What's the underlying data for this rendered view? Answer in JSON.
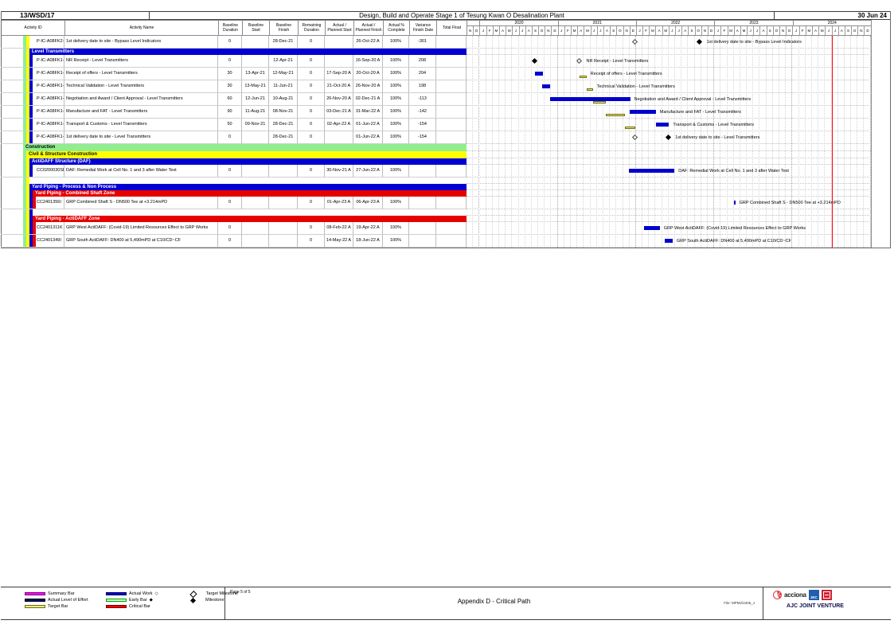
{
  "header": {
    "contract": "13/WSD/17",
    "title": "Design, Build and Operate Stage 1 of Tesung Kwan O Desalination Plant",
    "date": "30 Jun 24"
  },
  "colors": {
    "bands": {
      "green": "#90EE90",
      "yellow": "#FFFF00",
      "blue": "#0000D2",
      "red": "#E60000"
    },
    "actual_work": "#0000CD",
    "target_fill": "#EBE88F",
    "target_border": "#6E6E00",
    "summary": "#FF00FF",
    "actual_loe": "#000080",
    "early_fill": "#CCFFCC",
    "early_border": "#009900",
    "critical": "#FF0000",
    "milestone": "#000000",
    "data_date_line": "#FF0000"
  },
  "timeline": {
    "lead_label": "",
    "lead_months": [
      "N",
      "D"
    ],
    "years": [
      {
        "label": "2020",
        "months": [
          "J",
          "F",
          "M",
          "A",
          "M",
          "J",
          "J",
          "A",
          "S",
          "O",
          "N",
          "D"
        ]
      },
      {
        "label": "2021",
        "months": [
          "J",
          "F",
          "M",
          "A",
          "M",
          "J",
          "J",
          "A",
          "S",
          "O",
          "N",
          "D"
        ]
      },
      {
        "label": "2022",
        "months": [
          "J",
          "F",
          "M",
          "A",
          "M",
          "J",
          "J",
          "A",
          "S",
          "O",
          "N",
          "D"
        ]
      },
      {
        "label": "2023",
        "months": [
          "J",
          "F",
          "M",
          "A",
          "M",
          "J",
          "J",
          "A",
          "S",
          "O",
          "N",
          "D"
        ]
      },
      {
        "label": "2024",
        "months": [
          "J",
          "F",
          "M",
          "A",
          "M",
          "J",
          "J",
          "A",
          "S",
          "O",
          "N",
          "D"
        ]
      }
    ],
    "data_date": "30 Jun 24"
  },
  "table": {
    "columns": [
      "Activity ID",
      "Activity Name",
      "Baseline Duration",
      "Baseline Start",
      "Baseline Finish",
      "Remaining Duration",
      "Actual / Planned Start",
      "Actual / Planned Finish",
      "Actual % Complete",
      "Variance Finish Date",
      "Total Float"
    ],
    "rows": [
      {
        "type": "activity",
        "id": "P-IC-A08FK2-",
        "name": "1st delivery date to site - Bypass Level Indicators",
        "bd": "0",
        "bs": "",
        "bf": "28-Dec-21",
        "rd": "0",
        "as": "",
        "af": "26-Oct-22 A",
        "pc": "100%",
        "vf": "-301",
        "tf": "",
        "strips": [
          "green",
          "yellow"
        ],
        "bar_label": "1st delivery date to site - Bypass Level Indicators",
        "bars": [
          {
            "kind": "target-milestone",
            "date": "28-Dec-21"
          },
          {
            "kind": "milestone",
            "date": "26-Oct-22"
          }
        ]
      },
      {
        "type": "band",
        "style": "blue",
        "label": "Level Transmitters",
        "strips": [
          "green",
          "yellow"
        ]
      },
      {
        "type": "activity",
        "id": "P-IC-A08FK1-",
        "name": "NR Receipt - Level Transmitters",
        "bd": "0",
        "bs": "",
        "bf": "12-Apr-21",
        "rd": "0",
        "as": "",
        "af": "16-Sep-20 A",
        "pc": "100%",
        "vf": "208",
        "tf": "",
        "strips": [
          "green",
          "yellow",
          "blue"
        ],
        "bar_label": "NR Receipt - Level Transmitters",
        "bars": [
          {
            "kind": "milestone",
            "date": "16-Sep-20"
          },
          {
            "kind": "target-milestone",
            "date": "12-Apr-21"
          }
        ]
      },
      {
        "type": "activity",
        "id": "P-IC-A08FK1-",
        "name": "Receipt of offers - Level Transmitters",
        "bd": "30",
        "bs": "13-Apr-21",
        "bf": "12-May-21",
        "rd": "0",
        "as": "17-Sep-20 A",
        "af": "20-Oct-20 A",
        "pc": "100%",
        "vf": "204",
        "tf": "",
        "strips": [
          "green",
          "yellow",
          "blue"
        ],
        "bar_label": "Receipt of offers - Level Transmitters",
        "bars": [
          {
            "kind": "actual",
            "start": "17-Sep-20",
            "end": "20-Oct-20"
          },
          {
            "kind": "target",
            "start": "13-Apr-21",
            "end": "12-May-21"
          }
        ]
      },
      {
        "type": "activity",
        "id": "P-IC-A08FK1-",
        "name": "Technical Validation - Level Transmitters",
        "bd": "30",
        "bs": "13-May-21",
        "bf": "11-Jun-21",
        "rd": "0",
        "as": "21-Oct-20 A",
        "af": "26-Nov-20 A",
        "pc": "100%",
        "vf": "198",
        "tf": "",
        "strips": [
          "green",
          "yellow",
          "blue"
        ],
        "bar_label": "Technical Validation - Level Transmitters",
        "bars": [
          {
            "kind": "actual",
            "start": "21-Oct-20",
            "end": "26-Nov-20"
          },
          {
            "kind": "target",
            "start": "13-May-21",
            "end": "11-Jun-21"
          }
        ]
      },
      {
        "type": "activity",
        "id": "P-IC-A08FK1-",
        "name": "Negotiation and Award / Client Approval - Level Transmitters",
        "bd": "60",
        "bs": "12-Jun-21",
        "bf": "10-Aug-21",
        "rd": "0",
        "as": "26-Nov-20 A",
        "af": "02-Dec-21 A",
        "pc": "100%",
        "vf": "-113",
        "tf": "",
        "strips": [
          "green",
          "yellow",
          "blue"
        ],
        "bar_label": "Negotiation and Award / Client Approval - Level Transmitters",
        "bars": [
          {
            "kind": "actual",
            "start": "26-Nov-20",
            "end": "02-Dec-21"
          },
          {
            "kind": "target",
            "start": "12-Jun-21",
            "end": "10-Aug-21"
          }
        ]
      },
      {
        "type": "activity",
        "id": "P-IC-A08FK1-",
        "name": "Manufacture and FAT - Level Transmitters",
        "bd": "90",
        "bs": "11-Aug-21",
        "bf": "08-Nov-21",
        "rd": "0",
        "as": "03-Dec-21 A",
        "af": "31-Mar-22 A",
        "pc": "100%",
        "vf": "-142",
        "tf": "",
        "strips": [
          "green",
          "yellow",
          "blue"
        ],
        "bar_label": "Manufacture and FAT - Level Transmitters",
        "bars": [
          {
            "kind": "target",
            "start": "11-Aug-21",
            "end": "08-Nov-21"
          },
          {
            "kind": "actual",
            "start": "03-Dec-21",
            "end": "31-Mar-22"
          }
        ]
      },
      {
        "type": "activity",
        "id": "P-IC-A08FK1-",
        "name": "Transport & Customs - Level Transmitters",
        "bd": "50",
        "bs": "09-Nov-21",
        "bf": "28-Dec-21",
        "rd": "0",
        "as": "02-Apr-22 A",
        "af": "01-Jun-22 A",
        "pc": "100%",
        "vf": "-154",
        "tf": "",
        "strips": [
          "green",
          "yellow",
          "blue"
        ],
        "bar_label": "Transport & Customs - Level Transmitters",
        "bars": [
          {
            "kind": "target",
            "start": "09-Nov-21",
            "end": "28-Dec-21"
          },
          {
            "kind": "actual",
            "start": "02-Apr-22",
            "end": "01-Jun-22"
          }
        ]
      },
      {
        "type": "activity",
        "id": "P-IC-A08FK1-",
        "name": "1st delivery date to site - Level Transmitters",
        "bd": "0",
        "bs": "",
        "bf": "28-Dec-21",
        "rd": "0",
        "as": "",
        "af": "01-Jun-22 A",
        "pc": "100%",
        "vf": "-154",
        "tf": "",
        "strips": [
          "green",
          "yellow",
          "blue"
        ],
        "bar_label": "1st delivery date to site - Level Transmitters",
        "bars": [
          {
            "kind": "target-milestone",
            "date": "28-Dec-21"
          },
          {
            "kind": "milestone",
            "date": "01-Jun-22"
          }
        ]
      },
      {
        "type": "band",
        "style": "green",
        "label": "Construction",
        "strips": []
      },
      {
        "type": "band",
        "style": "yellow",
        "label": "Civil & Structure Construction",
        "strips": [
          "green"
        ]
      },
      {
        "type": "band",
        "style": "blue",
        "label": "ActiDAFF Structure (DAF)",
        "strips": [
          "green",
          "yellow"
        ]
      },
      {
        "type": "activity",
        "id": "CC0200030SK",
        "name": "DAF: Remedial Work at Cell No. 1 and 3 after Water Test",
        "bd": "0",
        "bs": "",
        "bf": "",
        "rd": "0",
        "as": "30-Nov-21 A",
        "af": "27-Jun-22 A",
        "pc": "100%",
        "vf": "",
        "tf": "",
        "strips": [
          "green",
          "yellow",
          "blue"
        ],
        "bar_label": "DAF: Remedial Work at Cell No. 1 and 3 after Water Test",
        "bars": [
          {
            "kind": "actual",
            "start": "30-Nov-21",
            "end": "27-Jun-22"
          }
        ]
      },
      {
        "type": "spacer",
        "strips": [
          "green",
          "yellow"
        ]
      },
      {
        "type": "band",
        "style": "blue",
        "label": "Yard Piping - Process & Non Process",
        "strips": [
          "green",
          "yellow"
        ]
      },
      {
        "type": "band",
        "style": "red",
        "label": "Yard Piping - Combined Shaft Zone",
        "strips": [
          "green",
          "yellow",
          "blue"
        ]
      },
      {
        "type": "activity",
        "id": "CC2401356I",
        "name": "GRP Combined Shaft S - DN500 Tee at +3.214mPD",
        "bd": "0",
        "bs": "",
        "bf": "",
        "rd": "0",
        "as": "01-Apr-23 A",
        "af": "06-Apr-23 A",
        "pc": "100%",
        "vf": "",
        "tf": "",
        "strips": [
          "green",
          "yellow",
          "blue",
          "red"
        ],
        "bar_label": "GRP Combined Shaft S - DN500 Tee at +3.214mPD",
        "bars": [
          {
            "kind": "actual",
            "start": "01-Apr-23",
            "end": "06-Apr-23"
          }
        ]
      },
      {
        "type": "spacer",
        "strips": [
          "green",
          "yellow",
          "blue"
        ]
      },
      {
        "type": "band",
        "style": "red",
        "label": "Yard Piping - ActiDAFF Zone",
        "strips": [
          "green",
          "yellow",
          "blue"
        ]
      },
      {
        "type": "activity",
        "id": "CC2401311K",
        "name": "GRP West ActiDAFF: (Covid-19) Limited Resources Effect to GRP Works",
        "bd": "0",
        "bs": "",
        "bf": "",
        "rd": "0",
        "as": "08-Feb-22 A",
        "af": "19-Apr-22 A",
        "pc": "100%",
        "vf": "",
        "tf": "",
        "strips": [
          "green",
          "yellow",
          "blue",
          "red"
        ],
        "bar_label": "GRP West ActiDAFF: (Covid-19) Limited Resources Effect to GRP Works",
        "bars": [
          {
            "kind": "actual",
            "start": "08-Feb-22",
            "end": "19-Apr-22"
          }
        ]
      },
      {
        "type": "activity",
        "id": "CC2401349I",
        "name": "GRP South ActiDAFF: DN400 at 5,490mPD at C10/CD~CF",
        "bd": "0",
        "bs": "",
        "bf": "",
        "rd": "0",
        "as": "14-May-22 A",
        "af": "18-Jun-22 A",
        "pc": "100%",
        "vf": "",
        "tf": "",
        "strips": [
          "green",
          "yellow",
          "blue",
          "red"
        ],
        "bar_label": "GRP South ActiDAFF: DN400 at 5,490mPD at C10/CD~CF",
        "bars": [
          {
            "kind": "actual",
            "start": "14-May-22",
            "end": "18-Jun-22"
          }
        ]
      }
    ]
  },
  "chart_data": {
    "type": "bar",
    "subtype": "gantt",
    "title": "Design, Build and Operate Stage 1 of Tesung Kwan O Desalination Plant",
    "timeline_start": "Nov-2019",
    "timeline_end": "Dec-2024",
    "data_date": "30 Jun 24",
    "grid": "monthly dotted verticals, year boundaries emphasized",
    "tasks": [
      {
        "name": "1st delivery date to site - Bypass Level Indicators",
        "target_milestone": "28-Dec-21",
        "actual_milestone": "26-Oct-22"
      },
      {
        "name": "NR Receipt - Level Transmitters",
        "actual_milestone": "16-Sep-20",
        "target_milestone": "12-Apr-21"
      },
      {
        "name": "Receipt of offers - Level Transmitters",
        "actual": [
          "17-Sep-20",
          "20-Oct-20"
        ],
        "target": [
          "13-Apr-21",
          "12-May-21"
        ]
      },
      {
        "name": "Technical Validation - Level Transmitters",
        "actual": [
          "21-Oct-20",
          "26-Nov-20"
        ],
        "target": [
          "13-May-21",
          "11-Jun-21"
        ]
      },
      {
        "name": "Negotiation and Award / Client Approval - Level Transmitters",
        "actual": [
          "26-Nov-20",
          "02-Dec-21"
        ],
        "target": [
          "12-Jun-21",
          "10-Aug-21"
        ]
      },
      {
        "name": "Manufacture and FAT - Level Transmitters",
        "actual": [
          "03-Dec-21",
          "31-Mar-22"
        ],
        "target": [
          "11-Aug-21",
          "08-Nov-21"
        ]
      },
      {
        "name": "Transport & Customs - Level Transmitters",
        "actual": [
          "02-Apr-22",
          "01-Jun-22"
        ],
        "target": [
          "09-Nov-21",
          "28-Dec-21"
        ]
      },
      {
        "name": "1st delivery date to site - Level Transmitters",
        "target_milestone": "28-Dec-21",
        "actual_milestone": "01-Jun-22"
      },
      {
        "name": "DAF: Remedial Work at Cell No. 1 and 3 after Water Test",
        "actual": [
          "30-Nov-21",
          "27-Jun-22"
        ]
      },
      {
        "name": "GRP Combined Shaft S - DN500 Tee at +3.214mPD",
        "actual": [
          "01-Apr-23",
          "06-Apr-23"
        ]
      },
      {
        "name": "GRP West ActiDAFF: (Covid-19) Limited Resources Effect to GRP Works",
        "actual": [
          "08-Feb-22",
          "19-Apr-22"
        ]
      },
      {
        "name": "GRP South ActiDAFF: DN400 at 5,490mPD at C10/CD~CF",
        "actual": [
          "14-May-22",
          "18-Jun-22"
        ]
      }
    ]
  },
  "legend": {
    "items": [
      {
        "swatch": "summary",
        "label": "Summary Bar"
      },
      {
        "swatch": "actual-loe",
        "label": "Actual Level of Effort"
      },
      {
        "swatch": "target",
        "label": "Target Bar"
      },
      {
        "swatch": "actual-work",
        "label": "Actual Work",
        "marker": "◇"
      },
      {
        "swatch": "early",
        "label": "Early Bar",
        "marker": "◆"
      },
      {
        "swatch": "critical",
        "label": "Critical Bar"
      },
      {
        "swatch": "diamond-open",
        "label": "Target Milestone"
      },
      {
        "swatch": "diamond-filled",
        "label": "Milestone"
      }
    ]
  },
  "footer": {
    "page_label": "Page 5 of 5",
    "appendix": "Appendix D - Critical Path",
    "file_label": "File: MPM2/2406_J",
    "acciona_label": "acciona",
    "jec_label": "JEC",
    "venture": "AJC JOINT VENTURE"
  }
}
